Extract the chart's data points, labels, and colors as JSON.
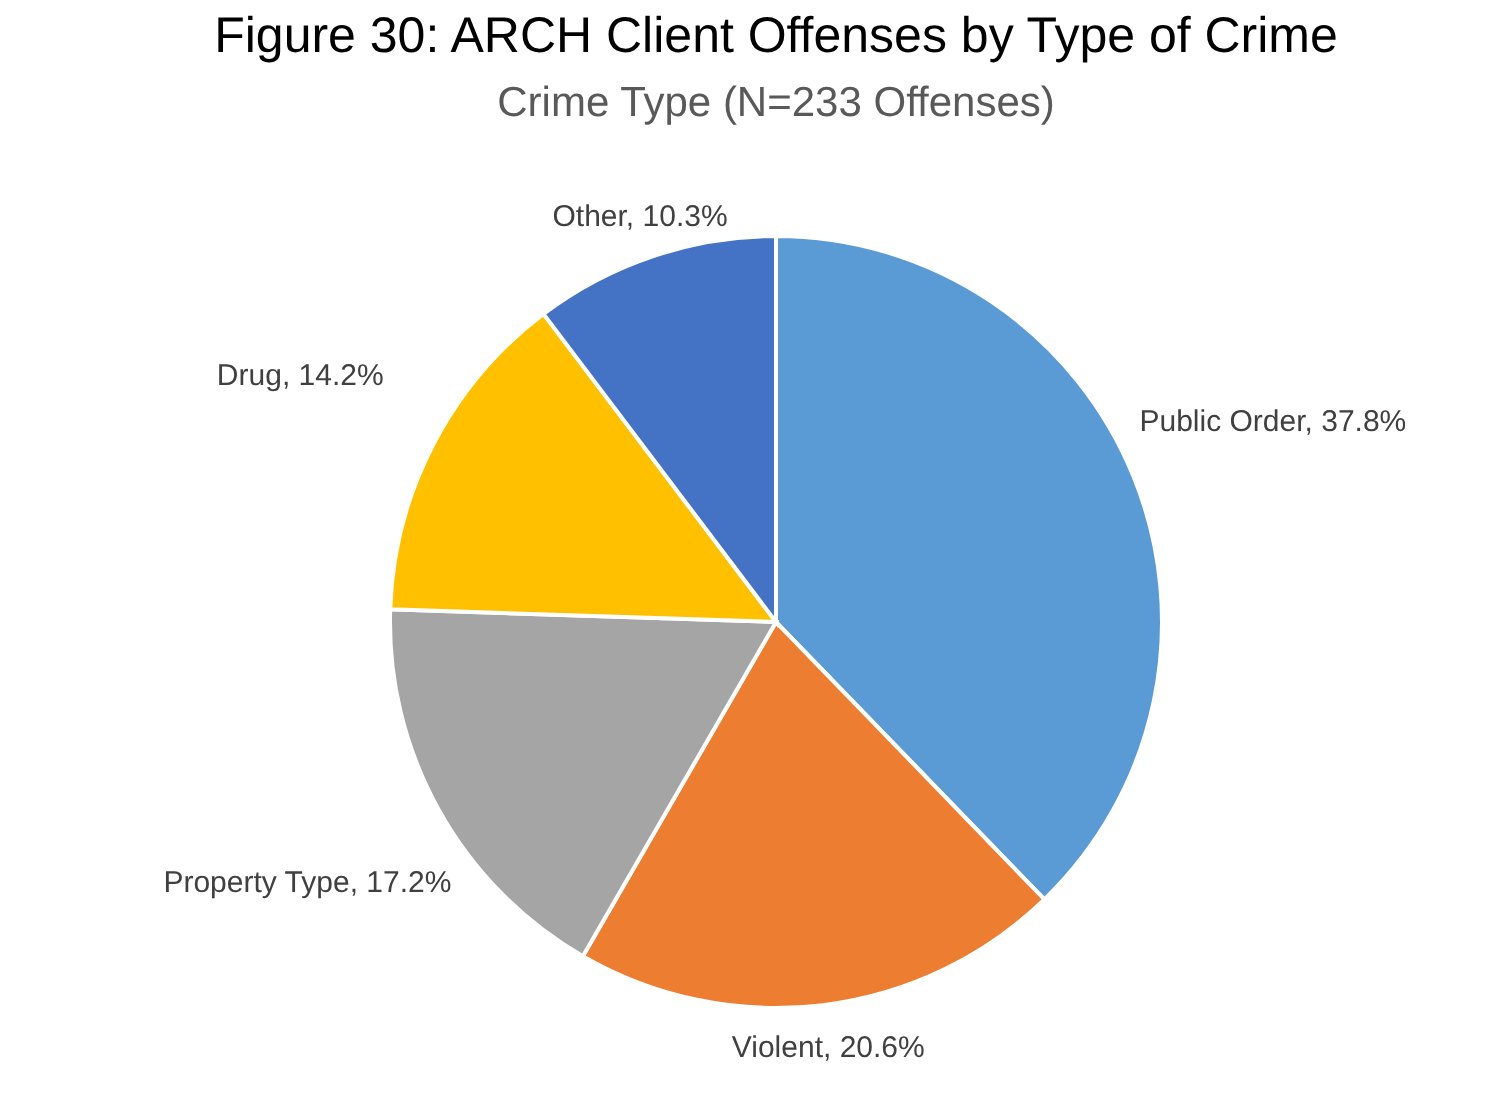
{
  "chart_data": {
    "type": "pie",
    "title": "Figure 30: ARCH Client Offenses by Type of Crime",
    "subtitle": "Crime Type (N=233 Offenses)",
    "categories": [
      "Public Order",
      "Violent",
      "Property Type",
      "Drug",
      "Other"
    ],
    "values": [
      37.8,
      20.6,
      17.2,
      14.2,
      10.3
    ],
    "value_labels": [
      "37.8%",
      "20.6%",
      "17.2%",
      "14.2%",
      "10.3%"
    ],
    "colors": [
      "#5b9bd5",
      "#ed7d31",
      "#a5a5a5",
      "#ffc000",
      "#4472c4"
    ],
    "legend": false
  }
}
